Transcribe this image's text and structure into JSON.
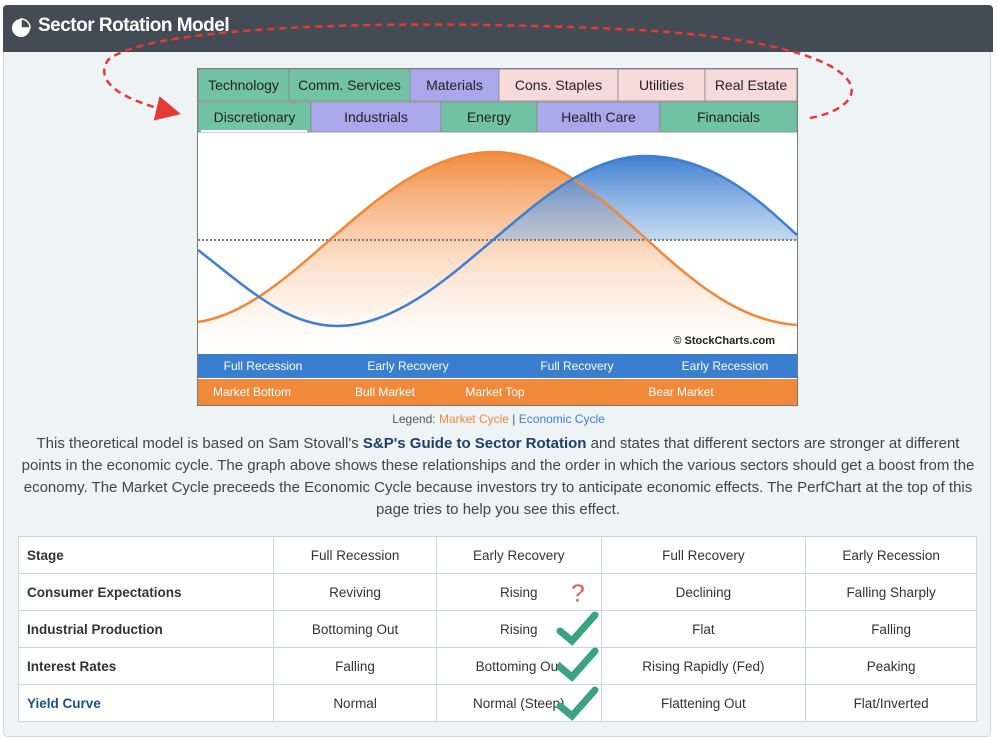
{
  "header": {
    "title": "Sector Rotation Model"
  },
  "figure": {
    "sectors_top": [
      "Technology",
      "Comm. Services",
      "Materials",
      "Cons. Staples",
      "Utilities",
      "Real Estate"
    ],
    "sectors_bottom": [
      "Discretionary",
      "Industrials",
      "Energy",
      "Health Care",
      "Financials"
    ],
    "watermark": "© StockCharts.com",
    "economic_stages": [
      "Full Recession",
      "Early Recovery",
      "Full Recovery",
      "Early Recession"
    ],
    "market_stages": [
      "Market Bottom",
      "Bull Market",
      "Market Top",
      "Bear Market"
    ],
    "legend": {
      "label": "Legend:",
      "market": "Market Cycle",
      "separator": "|",
      "economic": "Economic Cycle"
    }
  },
  "description": {
    "before": "This theoretical model is based on Sam Stovall's ",
    "link": "S&P's Guide to Sector Rotation",
    "after": " and states that different sectors are stronger at different points in the economic cycle. The graph above shows these relationships and the order in which the various sectors should get a boost from the economy. The Market Cycle preceeds the Economic Cycle because investors try to anticipate economic effects. The PerfChart at the top of this page tries to help you see this effect."
  },
  "table": {
    "rows": [
      [
        "Stage",
        "Full Recession",
        "Early Recovery",
        "Full Recovery",
        "Early Recession"
      ],
      [
        "Consumer Expectations",
        "Reviving",
        "Rising",
        "Declining",
        "Falling Sharply"
      ],
      [
        "Industrial Production",
        "Bottoming Out",
        "Rising",
        "Flat",
        "Falling"
      ],
      [
        "Interest Rates",
        "Falling",
        "Bottoming Out",
        "Rising Rapidly (Fed)",
        "Peaking"
      ],
      [
        "Yield Curve",
        "Normal",
        "Normal (Steep)",
        "Flattening Out",
        "Flat/Inverted"
      ]
    ]
  }
}
